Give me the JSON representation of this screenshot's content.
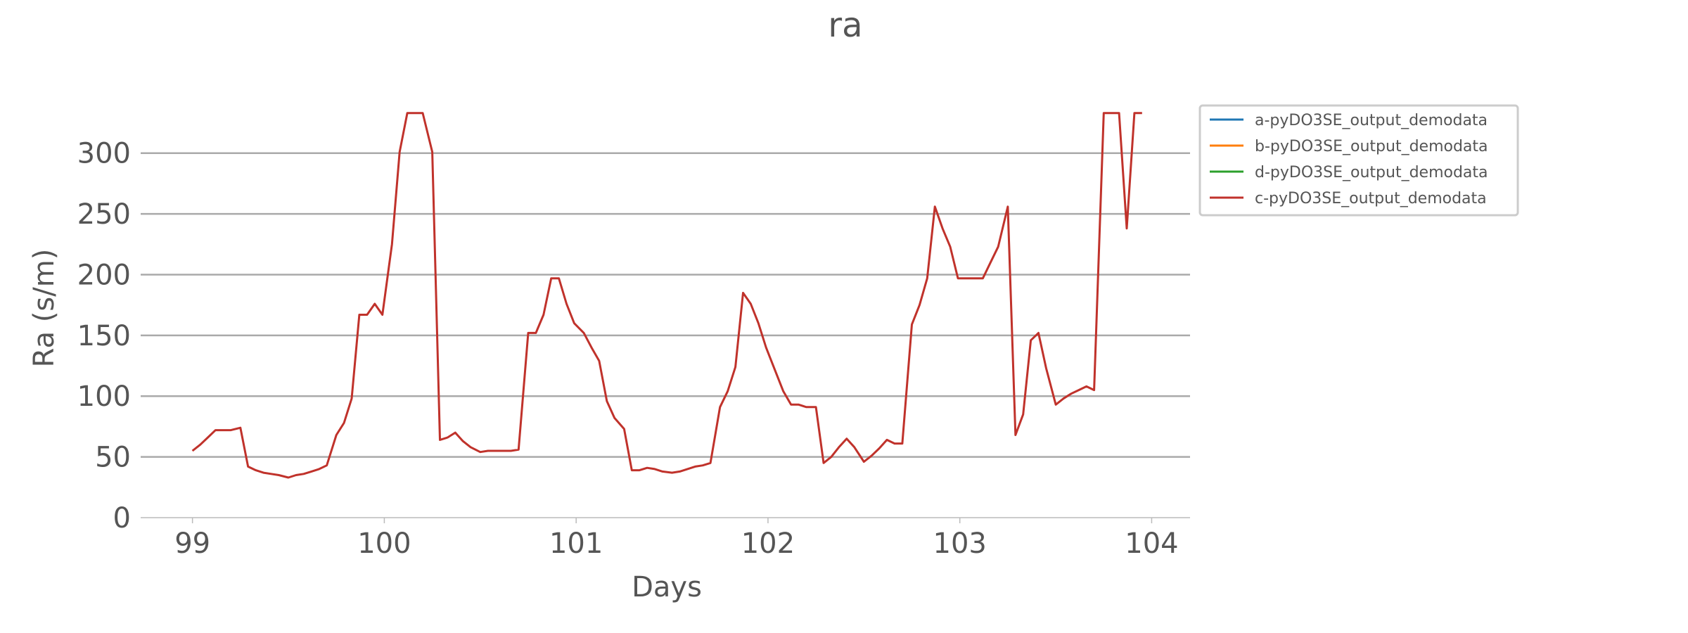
{
  "chart_data": {
    "type": "line",
    "title": "ra",
    "xlabel": "Days",
    "ylabel": "Ra (s/m)",
    "xlim": [
      98.73,
      104.2
    ],
    "ylim": [
      0,
      345
    ],
    "xticks": [
      99,
      100,
      101,
      102,
      103,
      104
    ],
    "yticks": [
      0,
      50,
      100,
      150,
      200,
      250,
      300
    ],
    "grid": "horizontal",
    "legend_position": "right-top",
    "series": [
      {
        "name": "a-pyDO3SE_output_demodata",
        "color": "#1f77b4",
        "points": []
      },
      {
        "name": "b-pyDO3SE_output_demodata",
        "color": "#ff7f0e",
        "points": []
      },
      {
        "name": "d-pyDO3SE_output_demodata",
        "color": "#2ca02c",
        "points": []
      },
      {
        "name": "c-pyDO3SE_output_demodata",
        "color": "#c0322b",
        "points": [
          [
            99.0,
            55
          ],
          [
            99.04,
            60
          ],
          [
            99.08,
            66
          ],
          [
            99.12,
            72
          ],
          [
            99.16,
            72
          ],
          [
            99.2,
            72
          ],
          [
            99.25,
            74
          ],
          [
            99.29,
            42
          ],
          [
            99.33,
            39
          ],
          [
            99.37,
            37
          ],
          [
            99.41,
            36
          ],
          [
            99.45,
            35
          ],
          [
            99.5,
            33
          ],
          [
            99.54,
            35
          ],
          [
            99.58,
            36
          ],
          [
            99.62,
            38
          ],
          [
            99.66,
            40
          ],
          [
            99.7,
            43
          ],
          [
            99.75,
            68
          ],
          [
            99.79,
            78
          ],
          [
            99.83,
            98
          ],
          [
            99.87,
            167
          ],
          [
            99.91,
            167
          ],
          [
            99.95,
            176
          ],
          [
            99.99,
            167
          ],
          [
            100.04,
            225
          ],
          [
            100.08,
            301
          ],
          [
            100.12,
            333
          ],
          [
            100.16,
            333
          ],
          [
            100.2,
            333
          ],
          [
            100.25,
            301
          ],
          [
            100.29,
            64
          ],
          [
            100.33,
            66
          ],
          [
            100.37,
            70
          ],
          [
            100.41,
            63
          ],
          [
            100.45,
            58
          ],
          [
            100.5,
            54
          ],
          [
            100.54,
            55
          ],
          [
            100.58,
            55
          ],
          [
            100.62,
            55
          ],
          [
            100.66,
            55
          ],
          [
            100.7,
            56
          ],
          [
            100.75,
            152
          ],
          [
            100.79,
            152
          ],
          [
            100.83,
            167
          ],
          [
            100.87,
            197
          ],
          [
            100.91,
            197
          ],
          [
            100.95,
            176
          ],
          [
            100.99,
            160
          ],
          [
            101.04,
            152
          ],
          [
            101.08,
            140
          ],
          [
            101.12,
            129
          ],
          [
            101.16,
            96
          ],
          [
            101.2,
            82
          ],
          [
            101.25,
            73
          ],
          [
            101.29,
            39
          ],
          [
            101.33,
            39
          ],
          [
            101.37,
            41
          ],
          [
            101.41,
            40
          ],
          [
            101.45,
            38
          ],
          [
            101.5,
            37
          ],
          [
            101.54,
            38
          ],
          [
            101.58,
            40
          ],
          [
            101.62,
            42
          ],
          [
            101.66,
            43
          ],
          [
            101.7,
            45
          ],
          [
            101.75,
            91
          ],
          [
            101.79,
            104
          ],
          [
            101.83,
            124
          ],
          [
            101.87,
            185
          ],
          [
            101.91,
            176
          ],
          [
            101.95,
            160
          ],
          [
            101.99,
            140
          ],
          [
            102.04,
            120
          ],
          [
            102.08,
            104
          ],
          [
            102.12,
            93
          ],
          [
            102.16,
            93
          ],
          [
            102.2,
            91
          ],
          [
            102.25,
            91
          ],
          [
            102.29,
            45
          ],
          [
            102.33,
            50
          ],
          [
            102.37,
            58
          ],
          [
            102.41,
            65
          ],
          [
            102.45,
            58
          ],
          [
            102.5,
            46
          ],
          [
            102.54,
            51
          ],
          [
            102.58,
            57
          ],
          [
            102.62,
            64
          ],
          [
            102.66,
            61
          ],
          [
            102.7,
            61
          ],
          [
            102.75,
            159
          ],
          [
            102.79,
            175
          ],
          [
            102.83,
            197
          ],
          [
            102.87,
            256
          ],
          [
            102.91,
            238
          ],
          [
            102.95,
            223
          ],
          [
            102.99,
            197
          ],
          [
            103.04,
            197
          ],
          [
            103.08,
            197
          ],
          [
            103.12,
            197
          ],
          [
            103.16,
            210
          ],
          [
            103.2,
            223
          ],
          [
            103.25,
            256
          ],
          [
            103.29,
            68
          ],
          [
            103.33,
            85
          ],
          [
            103.37,
            146
          ],
          [
            103.41,
            152
          ],
          [
            103.45,
            123
          ],
          [
            103.5,
            93
          ],
          [
            103.54,
            98
          ],
          [
            103.58,
            102
          ],
          [
            103.62,
            105
          ],
          [
            103.66,
            108
          ],
          [
            103.7,
            105
          ],
          [
            103.75,
            333
          ],
          [
            103.79,
            333
          ],
          [
            103.83,
            333
          ],
          [
            103.87,
            238
          ],
          [
            103.91,
            333
          ],
          [
            103.95,
            333
          ]
        ]
      }
    ]
  }
}
